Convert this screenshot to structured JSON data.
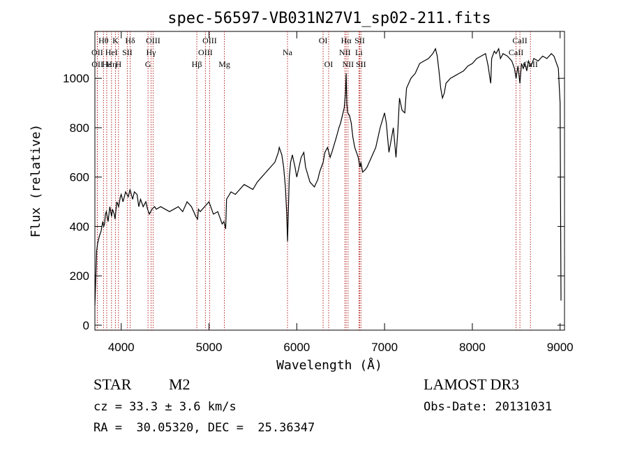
{
  "chart_data": {
    "type": "line",
    "title": "spec-56597-VB031N27V1_sp02-211.fits",
    "xlabel": "Wavelength (Å)",
    "ylabel": "Flux (relative)",
    "xlim": [
      3700,
      9050
    ],
    "ylim": [
      -20,
      1190
    ],
    "xticks": [
      4000,
      5000,
      6000,
      7000,
      8000,
      9000
    ],
    "yticks": [
      0,
      200,
      400,
      600,
      800,
      1000
    ],
    "grid": false,
    "line_color": "#000000",
    "marker_color": "#b22222",
    "series": [
      {
        "x": [
          3700,
          3720,
          3730,
          3750,
          3770,
          3790,
          3800,
          3810,
          3820,
          3830,
          3850,
          3870,
          3890,
          3900,
          3920,
          3930,
          3950,
          3970,
          3990,
          4000,
          4020,
          4050,
          4080,
          4100,
          4130,
          4150,
          4180,
          4200,
          4220,
          4250,
          4280,
          4300,
          4320,
          4350,
          4380,
          4400,
          4450,
          4500,
          4550,
          4600,
          4650,
          4700,
          4750,
          4800,
          4850,
          4870,
          4880,
          4900,
          4950,
          5000,
          5050,
          5100,
          5150,
          5170,
          5190,
          5200,
          5250,
          5300,
          5350,
          5400,
          5450,
          5500,
          5550,
          5600,
          5650,
          5700,
          5750,
          5790,
          5800,
          5830,
          5850,
          5870,
          5885,
          5895,
          5905,
          5915,
          5930,
          5950,
          5980,
          6000,
          6050,
          6080,
          6100,
          6150,
          6200,
          6240,
          6260,
          6280,
          6300,
          6320,
          6350,
          6380,
          6400,
          6450,
          6480,
          6500,
          6520,
          6540,
          6555,
          6563,
          6570,
          6580,
          6600,
          6620,
          6640,
          6660,
          6680,
          6700,
          6710,
          6720,
          6730,
          6750,
          6780,
          6800,
          6850,
          6900,
          6950,
          7000,
          7020,
          7050,
          7100,
          7130,
          7150,
          7170,
          7200,
          7230,
          7250,
          7300,
          7350,
          7400,
          7450,
          7500,
          7550,
          7580,
          7600,
          7620,
          7640,
          7660,
          7680,
          7700,
          7750,
          7800,
          7850,
          7900,
          7950,
          8000,
          8050,
          8100,
          8150,
          8180,
          8200,
          8210,
          8220,
          8250,
          8270,
          8300,
          8320,
          8350,
          8400,
          8450,
          8480,
          8498,
          8520,
          8542,
          8560,
          8580,
          8600,
          8620,
          8640,
          8662,
          8680,
          8700,
          8750,
          8800,
          8850,
          8900,
          8930,
          8960,
          8980,
          9000,
          9010
        ],
        "y": [
          80,
          300,
          330,
          360,
          380,
          420,
          400,
          410,
          450,
          460,
          420,
          480,
          440,
          470,
          450,
          430,
          500,
          480,
          520,
          530,
          500,
          540,
          520,
          550,
          510,
          540,
          530,
          480,
          510,
          480,
          500,
          470,
          450,
          470,
          480,
          470,
          480,
          470,
          460,
          470,
          480,
          460,
          500,
          480,
          440,
          430,
          470,
          460,
          480,
          500,
          450,
          460,
          410,
          420,
          390,
          510,
          540,
          530,
          550,
          570,
          560,
          550,
          580,
          600,
          620,
          640,
          660,
          700,
          720,
          690,
          640,
          560,
          450,
          340,
          480,
          600,
          660,
          690,
          640,
          600,
          680,
          700,
          640,
          580,
          560,
          590,
          620,
          640,
          660,
          700,
          720,
          680,
          700,
          760,
          800,
          820,
          850,
          880,
          940,
          1020,
          900,
          860,
          850,
          820,
          760,
          720,
          700,
          680,
          660,
          640,
          660,
          620,
          630,
          640,
          680,
          720,
          800,
          860,
          820,
          700,
          800,
          680,
          780,
          920,
          870,
          860,
          960,
          1000,
          1020,
          1060,
          1070,
          1080,
          1100,
          1120,
          1090,
          1030,
          960,
          920,
          940,
          980,
          1000,
          1010,
          1020,
          1030,
          1050,
          1060,
          1080,
          1090,
          1100,
          1050,
          1000,
          980,
          1080,
          1110,
          1100,
          1120,
          1080,
          1100,
          1090,
          1070,
          1040,
          1000,
          1050,
          980,
          1060,
          1040,
          1060,
          1030,
          1070,
          1050,
          1060,
          1080,
          1070,
          1090,
          1080,
          1100,
          1090,
          1060,
          1040,
          900,
          100
        ]
      }
    ],
    "lines_markers": [
      {
        "label": "Hθ",
        "wave": 3798,
        "row": 0
      },
      {
        "label": "OII",
        "wave": 3727,
        "row": 1
      },
      {
        "label": "OII",
        "wave": 3729,
        "row": 2
      },
      {
        "label": "Hε",
        "wave": 3835,
        "row": 2
      },
      {
        "label": "HeI",
        "wave": 3889,
        "row": 1
      },
      {
        "label": "K",
        "wave": 3934,
        "row": 0
      },
      {
        "label": "Hη",
        "wave": 3889,
        "row": 2
      },
      {
        "label": "SII",
        "wave": 4069,
        "row": 1
      },
      {
        "label": "H",
        "wave": 3969,
        "row": 2
      },
      {
        "label": "Hδ",
        "wave": 4102,
        "row": 0
      },
      {
        "label": "OIII",
        "wave": 4363,
        "row": 0
      },
      {
        "label": "Hγ",
        "wave": 4340,
        "row": 1
      },
      {
        "label": "G",
        "wave": 4305,
        "row": 2
      },
      {
        "label": "Hβ",
        "wave": 4861,
        "row": 2
      },
      {
        "label": "OIII",
        "wave": 5007,
        "row": 0
      },
      {
        "label": "OIII",
        "wave": 4959,
        "row": 1
      },
      {
        "label": "Mg",
        "wave": 5175,
        "row": 2
      },
      {
        "label": "Na",
        "wave": 5894,
        "row": 1
      },
      {
        "label": "OI",
        "wave": 6300,
        "row": 0
      },
      {
        "label": "OI",
        "wave": 6363,
        "row": 2
      },
      {
        "label": "Hα",
        "wave": 6563,
        "row": 0
      },
      {
        "label": "SII",
        "wave": 6717,
        "row": 0
      },
      {
        "label": "NII",
        "wave": 6548,
        "row": 1
      },
      {
        "label": "Li",
        "wave": 6708,
        "row": 1
      },
      {
        "label": "NII",
        "wave": 6584,
        "row": 2
      },
      {
        "label": "SII",
        "wave": 6731,
        "row": 2
      },
      {
        "label": "CaII",
        "wave": 8542,
        "row": 0
      },
      {
        "label": "CaII",
        "wave": 8498,
        "row": 1
      },
      {
        "label": "CaII",
        "wave": 8662,
        "row": 2
      }
    ],
    "marker_lines": [
      3727,
      3729,
      3798,
      3835,
      3889,
      3934,
      3969,
      4069,
      4102,
      4305,
      4340,
      4363,
      4861,
      4959,
      5007,
      5175,
      5894,
      6300,
      6363,
      6548,
      6563,
      6584,
      6708,
      6717,
      6731,
      8498,
      8542,
      8662
    ]
  },
  "info": {
    "class": "STAR",
    "subclass": "M2",
    "survey": "LAMOST DR3",
    "cz": "cz = 33.3 ± 3.6 km/s",
    "obs_date": "Obs-Date: 20131031",
    "radec": "RA =  30.05320, DEC =  25.36347"
  }
}
